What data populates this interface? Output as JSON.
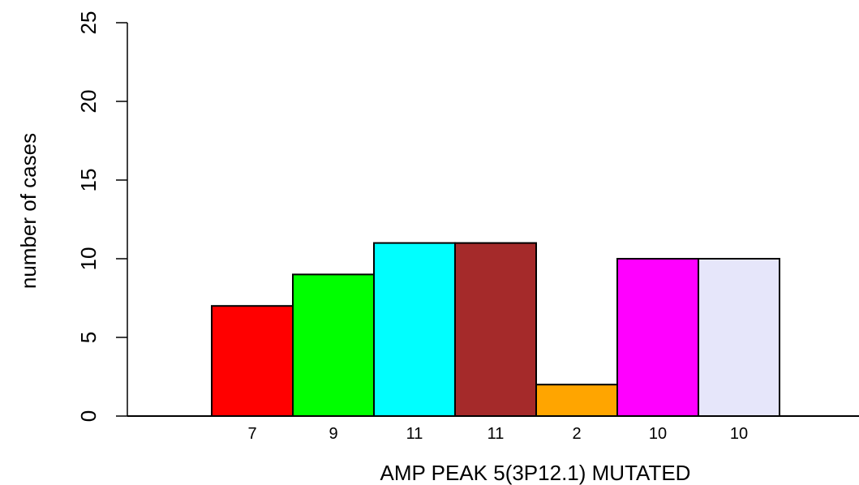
{
  "chart_data": {
    "type": "bar",
    "title": "",
    "xlabel": "AMP PEAK  5(3P12.1) MUTATED",
    "ylabel": "number of cases",
    "categories": [
      "7",
      "9",
      "11",
      "11",
      "2",
      "10",
      "10"
    ],
    "values": [
      7,
      9,
      11,
      11,
      2,
      10,
      10
    ],
    "colors": [
      "#ff0000",
      "#00ff00",
      "#00ffff",
      "#a52a2a",
      "#ffa500",
      "#ff00ff",
      "#e6e6fa"
    ],
    "ylim": [
      0,
      25
    ],
    "yticks": [
      "0",
      "5",
      "10",
      "15",
      "20",
      "25"
    ],
    "grid": false,
    "legend": "none"
  }
}
